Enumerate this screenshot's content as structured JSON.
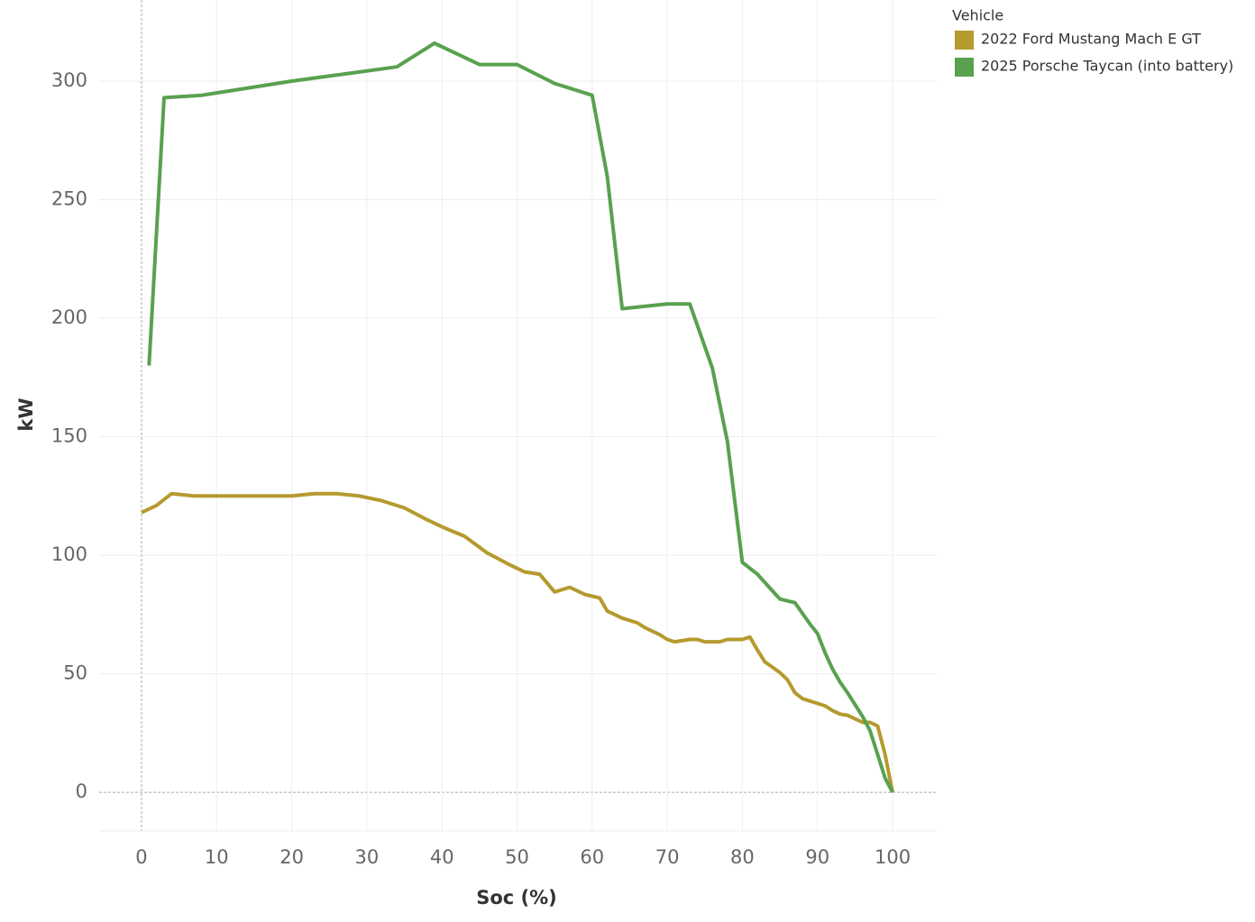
{
  "chart_data": {
    "type": "line",
    "x_label": "Soc (%)",
    "y_label": "kW",
    "legend_title": "Vehicle",
    "xlim": [
      -5.64,
      106
    ],
    "ylim": [
      -16.3,
      334.2
    ],
    "xticks": [
      0,
      10,
      20,
      30,
      40,
      50,
      60,
      70,
      80,
      90,
      100
    ],
    "yticks": [
      0,
      50,
      100,
      150,
      200,
      250,
      300
    ],
    "grid": true,
    "series": [
      {
        "name": "2022 Ford Mustang Mach E GT",
        "color": "#b59a2e",
        "x": [
          0,
          2,
          4,
          7,
          10,
          15,
          20,
          23,
          26,
          29,
          32,
          35,
          38,
          40,
          43,
          46,
          49,
          51,
          53,
          55,
          57,
          59,
          61,
          62,
          64,
          66,
          67,
          69,
          70,
          71,
          73,
          74,
          75,
          77,
          78,
          80,
          81,
          82,
          83,
          85,
          86,
          87,
          88,
          90,
          91,
          92,
          93,
          94,
          95,
          96,
          97,
          98,
          99,
          100
        ],
        "values": [
          118,
          121,
          126,
          125,
          125,
          125,
          125,
          126,
          126,
          125,
          123,
          120,
          115,
          112,
          108,
          101,
          96,
          93,
          92,
          84.5,
          86.5,
          83.5,
          82,
          76.5,
          73.5,
          71.5,
          69.5,
          66.5,
          64.5,
          63.5,
          64.5,
          64.5,
          63.5,
          63.5,
          64.5,
          64.5,
          65.5,
          60,
          55,
          50.5,
          47.5,
          42,
          39.5,
          37.5,
          36.5,
          34.5,
          33,
          32.5,
          31,
          29.5,
          29.5,
          28,
          16,
          0
        ]
      },
      {
        "name": "2025 Porsche Taycan (into battery)",
        "color": "#59a14f",
        "x": [
          1,
          3,
          8,
          14,
          20,
          27,
          34,
          39,
          45,
          50,
          55,
          60,
          62,
          64,
          70,
          73,
          76,
          78,
          80,
          82,
          84,
          85,
          87,
          89,
          90,
          91,
          92,
          93,
          94,
          95,
          96,
          97,
          98,
          99,
          100
        ],
        "values": [
          180,
          293,
          294,
          297,
          300,
          303,
          306,
          316,
          307,
          307,
          299,
          294,
          260,
          204,
          206,
          206,
          179,
          148,
          97,
          92,
          85,
          81.5,
          80,
          71,
          67,
          59,
          52,
          46.5,
          42,
          37,
          32,
          26,
          16,
          6,
          0
        ]
      }
    ]
  }
}
